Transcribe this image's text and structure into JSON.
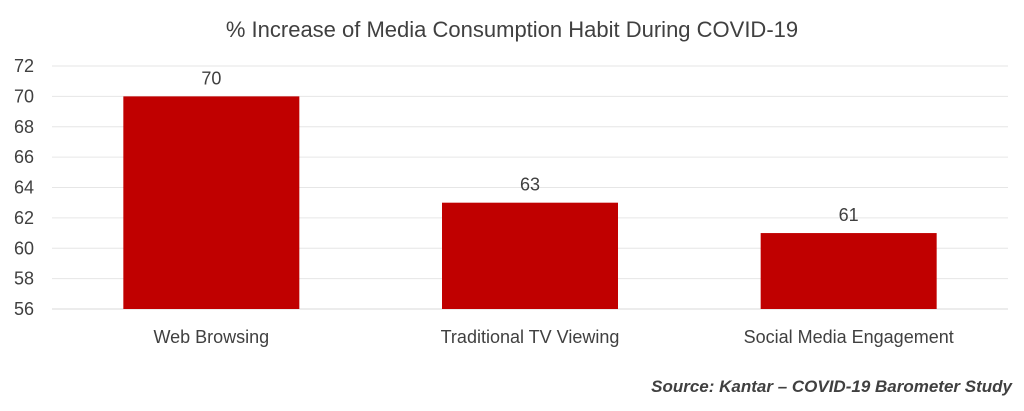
{
  "chart_data": {
    "type": "bar",
    "title": "% Increase of Media Consumption Habit During COVID-19",
    "categories": [
      "Web Browsing",
      "Traditional TV Viewing",
      "Social Media Engagement"
    ],
    "values": [
      70,
      63,
      61
    ],
    "data_labels": [
      "70",
      "63",
      "61"
    ],
    "ylim": [
      56,
      72
    ],
    "yticks": [
      56,
      58,
      60,
      62,
      64,
      66,
      68,
      70,
      72
    ],
    "xlabel": "",
    "ylabel": "",
    "grid": true,
    "bar_color": "#c00000",
    "source": "Source: Kantar – COVID-19 Barometer Study"
  }
}
